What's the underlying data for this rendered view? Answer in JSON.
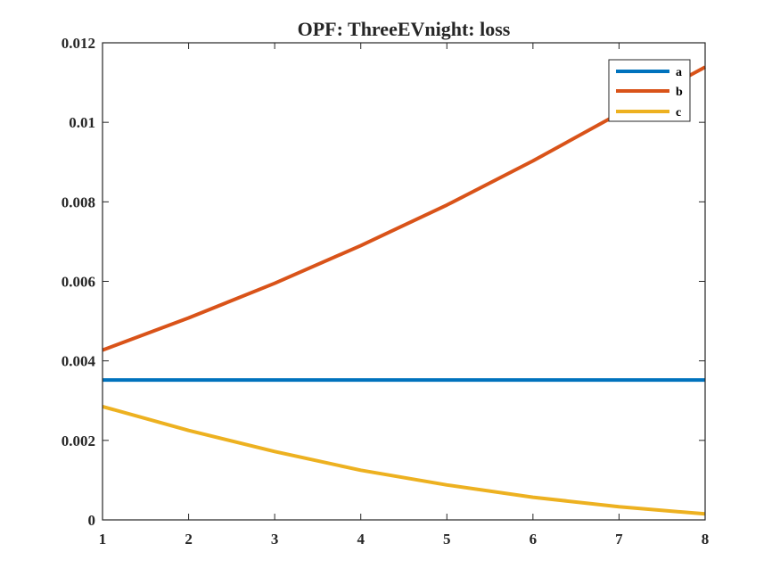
{
  "chart_data": {
    "type": "line",
    "title": "OPF: ThreeEVnight: loss",
    "xlabel": "",
    "ylabel": "",
    "x": [
      1,
      2,
      3,
      4,
      5,
      6,
      7,
      8
    ],
    "xlim": [
      1,
      8
    ],
    "ylim": [
      0,
      0.012
    ],
    "xticks": [
      1,
      2,
      3,
      4,
      5,
      6,
      7,
      8
    ],
    "yticks": [
      0,
      0.002,
      0.004,
      0.006,
      0.008,
      0.01,
      0.012
    ],
    "xtick_labels": [
      "1",
      "2",
      "3",
      "4",
      "5",
      "6",
      "7",
      "8"
    ],
    "ytick_labels": [
      "0",
      "0.002",
      "0.004",
      "0.006",
      "0.008",
      "0.01",
      "0.012"
    ],
    "grid": false,
    "legend_position": "top-right",
    "series": [
      {
        "name": "a",
        "color": "#0072BD",
        "values": [
          0.00352,
          0.00352,
          0.00352,
          0.00352,
          0.00352,
          0.00352,
          0.00352,
          0.00352
        ]
      },
      {
        "name": "b",
        "color": "#D95319",
        "values": [
          0.00427,
          0.00508,
          0.00595,
          0.0069,
          0.00792,
          0.00903,
          0.01022,
          0.01139
        ]
      },
      {
        "name": "c",
        "color": "#EDB120",
        "values": [
          0.00285,
          0.00225,
          0.00172,
          0.00125,
          0.00088,
          0.00057,
          0.00033,
          0.00015
        ]
      }
    ]
  }
}
